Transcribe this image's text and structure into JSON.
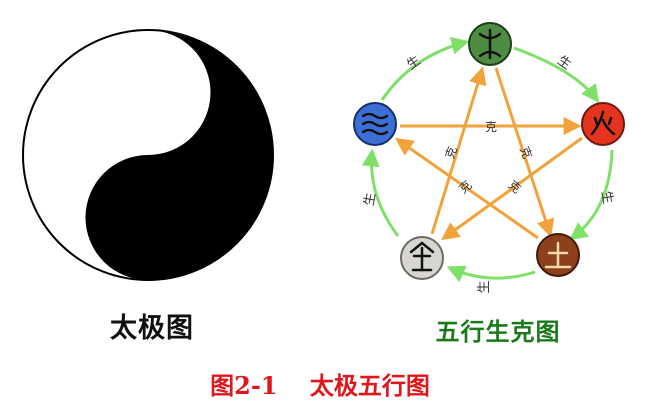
{
  "taiji": {
    "caption": "太极图",
    "colors": {
      "dark": "#000000",
      "light": "#ffffff"
    }
  },
  "wuxing": {
    "caption": "五行生克图",
    "generate_label": "生",
    "overcome_label": "克",
    "colors": {
      "generate_arrow": "#7ee067",
      "overcome_arrow": "#f2a23a",
      "caption": "#1a7a1a"
    },
    "elements": [
      {
        "name": "木",
        "color": "#4f8c43",
        "icon": "wood-glyph-icon"
      },
      {
        "name": "火",
        "color": "#e5341e",
        "icon": "fire-glyph-icon"
      },
      {
        "name": "土",
        "color": "#8e3f1b",
        "icon": "earth-glyph-icon"
      },
      {
        "name": "金",
        "color": "#d8d6d0",
        "icon": "metal-glyph-icon"
      },
      {
        "name": "水",
        "color": "#3c6fd6",
        "icon": "water-glyph-icon"
      }
    ]
  },
  "figure_title": "图2-1　 太极五行图",
  "figure_title_color": "#e0161d"
}
